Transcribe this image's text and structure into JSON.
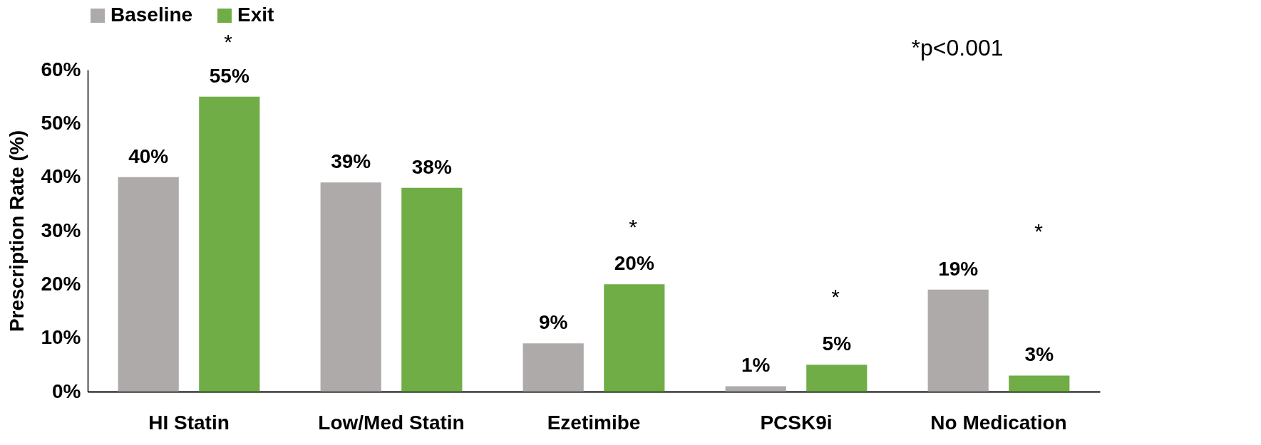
{
  "chart_data": {
    "type": "bar",
    "ylabel": "Prescription Rate (%)",
    "categories": [
      "HI Statin",
      "Low/Med Statin",
      "Ezetimibe",
      "PCSK9i",
      "No Medication"
    ],
    "series": [
      {
        "name": "Baseline",
        "color": "#aeaaaa",
        "values": [
          40,
          39,
          9,
          1,
          19
        ],
        "value_labels": [
          "40%",
          "39%",
          "9%",
          "1%",
          "19%"
        ]
      },
      {
        "name": "Exit",
        "color": "#70ad47",
        "values": [
          55,
          38,
          20,
          5,
          3
        ],
        "value_labels": [
          "55%",
          "38%",
          "20%",
          "5%",
          "3%"
        ]
      }
    ],
    "ylim": [
      0,
      60
    ],
    "yticks": [
      {
        "value": 0,
        "label": "0%"
      },
      {
        "value": 10,
        "label": "10%"
      },
      {
        "value": 20,
        "label": "20%"
      },
      {
        "value": 30,
        "label": "30%"
      },
      {
        "value": 40,
        "label": "40%"
      },
      {
        "value": 50,
        "label": "50%"
      },
      {
        "value": 60,
        "label": "60%"
      }
    ],
    "legend": "top",
    "annotations": [
      "*",
      "*",
      "*",
      "*",
      "*p<0.001"
    ]
  }
}
